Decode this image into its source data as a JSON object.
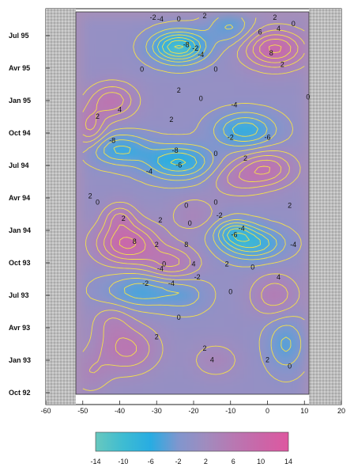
{
  "chart_data": {
    "type": "heatmap",
    "title": "",
    "xlabel": "",
    "ylabel": "",
    "xlim": [
      -60,
      20
    ],
    "x_ticks": [
      "-60",
      "-50",
      "-40",
      "-30",
      "-20",
      "-10",
      "0",
      "10",
      "20"
    ],
    "y_ticks": [
      "Oct 92",
      "Jan 93",
      "Avr 93",
      "Jul 93",
      "Oct 93",
      "Jan 94",
      "Avr 94",
      "Jul 94",
      "Oct 94",
      "Jan 95",
      "Avr 95",
      "Jul 95"
    ],
    "colorbar": {
      "ticks": [
        "-14",
        "-10",
        "-6",
        "-2",
        "2",
        "6",
        "10",
        "14"
      ],
      "range": [
        -14,
        14
      ]
    },
    "contour_labels": [
      {
        "t": "-2",
        "x": -31,
        "y": 11.55
      },
      {
        "t": "-4",
        "x": -29,
        "y": 11.5
      },
      {
        "t": "0",
        "x": -24,
        "y": 11.5
      },
      {
        "t": "2",
        "x": -17,
        "y": 11.6
      },
      {
        "t": "2",
        "x": 2,
        "y": 11.55
      },
      {
        "t": "0",
        "x": 7,
        "y": 11.35
      },
      {
        "t": "6",
        "x": -2,
        "y": 11.1
      },
      {
        "t": "4",
        "x": 3,
        "y": 11.2
      },
      {
        "t": "-8",
        "x": -22,
        "y": 10.7
      },
      {
        "t": "-4",
        "x": -18,
        "y": 10.4
      },
      {
        "t": "-2",
        "x": -19.5,
        "y": 10.6
      },
      {
        "t": "8",
        "x": 1,
        "y": 10.45
      },
      {
        "t": "0",
        "x": -34,
        "y": 9.95
      },
      {
        "t": "0",
        "x": -14,
        "y": 9.95
      },
      {
        "t": "2",
        "x": 4,
        "y": 10.1
      },
      {
        "t": "2",
        "x": -24,
        "y": 9.3
      },
      {
        "t": "0",
        "x": -18,
        "y": 9.05
      },
      {
        "t": "-4",
        "x": -9,
        "y": 8.85
      },
      {
        "t": "0",
        "x": 11,
        "y": 9.1
      },
      {
        "t": "4",
        "x": -40,
        "y": 8.7
      },
      {
        "t": "2",
        "x": -46,
        "y": 8.5
      },
      {
        "t": "2",
        "x": -26,
        "y": 8.4
      },
      {
        "t": "-2",
        "x": -10,
        "y": 7.85
      },
      {
        "t": "-6",
        "x": 0,
        "y": 7.85
      },
      {
        "t": "-8",
        "x": -42,
        "y": 7.75
      },
      {
        "t": "-8",
        "x": -25,
        "y": 7.45
      },
      {
        "t": "0",
        "x": -14,
        "y": 7.35
      },
      {
        "t": "2",
        "x": -6,
        "y": 7.2
      },
      {
        "t": "-6",
        "x": -24,
        "y": 7.0
      },
      {
        "t": "-4",
        "x": -32,
        "y": 6.8
      },
      {
        "t": "2",
        "x": -48,
        "y": 6.05
      },
      {
        "t": "0",
        "x": -46,
        "y": 5.85
      },
      {
        "t": "0",
        "x": -22,
        "y": 5.75
      },
      {
        "t": "0",
        "x": -14,
        "y": 5.85
      },
      {
        "t": "2",
        "x": 6,
        "y": 5.75
      },
      {
        "t": "2",
        "x": -39,
        "y": 5.35
      },
      {
        "t": "2",
        "x": -29,
        "y": 5.3
      },
      {
        "t": "0",
        "x": -21,
        "y": 5.2
      },
      {
        "t": "-2",
        "x": -13,
        "y": 5.45
      },
      {
        "t": "-4",
        "x": -7,
        "y": 5.05
      },
      {
        "t": "8",
        "x": -36,
        "y": 4.65
      },
      {
        "t": "8",
        "x": -22,
        "y": 4.55
      },
      {
        "t": "2",
        "x": -30,
        "y": 4.55
      },
      {
        "t": "-6",
        "x": -9,
        "y": 4.85
      },
      {
        "t": "-4",
        "x": 7,
        "y": 4.55
      },
      {
        "t": "0",
        "x": -28,
        "y": 3.95
      },
      {
        "t": "-4",
        "x": -29,
        "y": 3.8
      },
      {
        "t": "4",
        "x": -20,
        "y": 3.95
      },
      {
        "t": "2",
        "x": -11,
        "y": 3.95
      },
      {
        "t": "0",
        "x": -4,
        "y": 3.85
      },
      {
        "t": "4",
        "x": 3,
        "y": 3.55
      },
      {
        "t": "-2",
        "x": -33,
        "y": 3.35
      },
      {
        "t": "-4",
        "x": -26,
        "y": 3.35
      },
      {
        "t": "-2",
        "x": -19,
        "y": 3.55
      },
      {
        "t": "0",
        "x": -10,
        "y": 3.1
      },
      {
        "t": "0",
        "x": -24,
        "y": 2.3
      },
      {
        "t": "2",
        "x": -30,
        "y": 1.7
      },
      {
        "t": "2",
        "x": -17,
        "y": 1.35
      },
      {
        "t": "4",
        "x": -15,
        "y": 1.0
      },
      {
        "t": "2",
        "x": 0,
        "y": 1.0
      },
      {
        "t": "0",
        "x": 6,
        "y": 0.8
      }
    ]
  }
}
